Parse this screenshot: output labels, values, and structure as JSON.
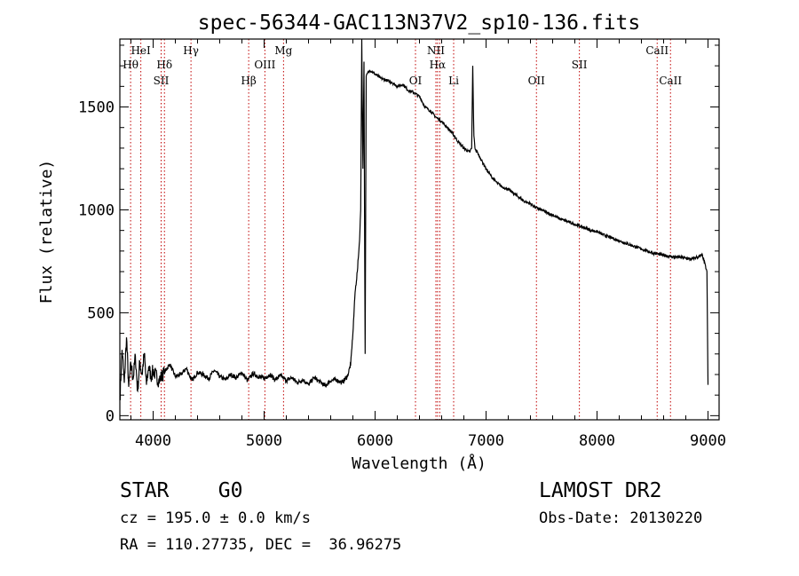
{
  "chart_data": {
    "type": "line",
    "title": "spec-56344-GAC113N37V2_sp10-136.fits",
    "xlabel": "Wavelength (Å)",
    "ylabel": "Flux (relative)",
    "xlim": [
      3700,
      9100
    ],
    "ylim": [
      -20,
      1830
    ],
    "x_ticks": [
      4000,
      5000,
      6000,
      7000,
      8000,
      9000
    ],
    "y_ticks": [
      0,
      500,
      1000,
      1500
    ],
    "grid": false,
    "series": [
      {
        "x": [
          3700,
          3720,
          3740,
          3760,
          3780,
          3800,
          3820,
          3840,
          3860,
          3880,
          3900,
          3920,
          3940,
          3960,
          3980,
          4000,
          4050,
          4100,
          4150,
          4200,
          4250,
          4300,
          4350,
          4400,
          4450,
          4500,
          4550,
          4600,
          4650,
          4700,
          4750,
          4800,
          4850,
          4900,
          4950,
          5000,
          5050,
          5100,
          5150,
          5200,
          5250,
          5300,
          5350,
          5400,
          5450,
          5500,
          5550,
          5600,
          5650,
          5700,
          5750,
          5780,
          5800,
          5820,
          5840,
          5860,
          5870,
          5880,
          5890,
          5900,
          5910,
          5920,
          5950,
          6000,
          6050,
          6100,
          6150,
          6200,
          6250,
          6300,
          6350,
          6400,
          6450,
          6500,
          6550,
          6600,
          6650,
          6700,
          6750,
          6800,
          6850,
          6870,
          6880,
          6890,
          6900,
          6950,
          7000,
          7050,
          7100,
          7150,
          7200,
          7250,
          7300,
          7350,
          7400,
          7450,
          7500,
          7550,
          7600,
          7650,
          7700,
          7750,
          7800,
          7850,
          7900,
          7950,
          8000,
          8050,
          8100,
          8150,
          8200,
          8250,
          8300,
          8350,
          8400,
          8450,
          8500,
          8550,
          8600,
          8650,
          8700,
          8750,
          8800,
          8850,
          8900,
          8950,
          8990,
          9000
        ],
        "y": [
          80,
          320,
          160,
          380,
          140,
          250,
          180,
          290,
          120,
          260,
          200,
          300,
          150,
          240,
          190,
          220,
          170,
          210,
          250,
          190,
          200,
          230,
          170,
          210,
          200,
          180,
          220,
          190,
          175,
          200,
          185,
          210,
          170,
          205,
          190,
          180,
          200,
          175,
          195,
          170,
          185,
          160,
          175,
          150,
          185,
          165,
          145,
          170,
          175,
          160,
          190,
          250,
          400,
          600,
          700,
          850,
          1000,
          1830,
          1200,
          1720,
          300,
          1650,
          1680,
          1660,
          1640,
          1630,
          1620,
          1600,
          1610,
          1580,
          1570,
          1550,
          1500,
          1480,
          1450,
          1430,
          1400,
          1370,
          1330,
          1300,
          1280,
          1300,
          1700,
          1360,
          1300,
          1250,
          1200,
          1160,
          1130,
          1110,
          1100,
          1080,
          1060,
          1040,
          1030,
          1010,
          1000,
          985,
          975,
          960,
          950,
          940,
          930,
          920,
          910,
          900,
          895,
          880,
          870,
          860,
          850,
          840,
          830,
          820,
          810,
          800,
          790,
          785,
          780,
          775,
          770,
          770,
          765,
          760,
          770,
          780,
          700,
          150
        ]
      }
    ],
    "lines": [
      {
        "x": 3797,
        "label": "Hθ",
        "row": 2
      },
      {
        "x": 3889,
        "label": "HeI",
        "row": 1
      },
      {
        "x": 4072,
        "label": "SII",
        "row": 3
      },
      {
        "x": 4102,
        "label": "Hδ",
        "row": 2
      },
      {
        "x": 4341,
        "label": "Hγ",
        "row": 1
      },
      {
        "x": 4861,
        "label": "Hβ",
        "row": 3
      },
      {
        "x": 5007,
        "label": "OIII",
        "row": 2
      },
      {
        "x": 5175,
        "label": "Mg",
        "row": 1
      },
      {
        "x": 6364,
        "label": "OI",
        "row": 3
      },
      {
        "x": 6548,
        "label": "NII",
        "row": 1
      },
      {
        "x": 6563,
        "label": "Hα",
        "row": 2
      },
      {
        "x": 6583,
        "label": "",
        "row": 1
      },
      {
        "x": 6708,
        "label": "Li",
        "row": 3
      },
      {
        "x": 7454,
        "label": "OII",
        "row": 3
      },
      {
        "x": 7841,
        "label": "SII",
        "row": 2
      },
      {
        "x": 8542,
        "label": "CaII",
        "row": 1
      },
      {
        "x": 8662,
        "label": "CaII",
        "row": 3
      }
    ]
  },
  "info": {
    "object_class": "STAR    G0",
    "survey": "LAMOST DR2",
    "velocity": "cz = 195.0 ± 0.0 km/s",
    "obs_date": "Obs-Date: 20130220",
    "coords": "RA = 110.27735, DEC =  36.96275"
  },
  "colors": {
    "line_marker": "#c00000",
    "spectrum": "#000000",
    "axes": "#000000"
  }
}
